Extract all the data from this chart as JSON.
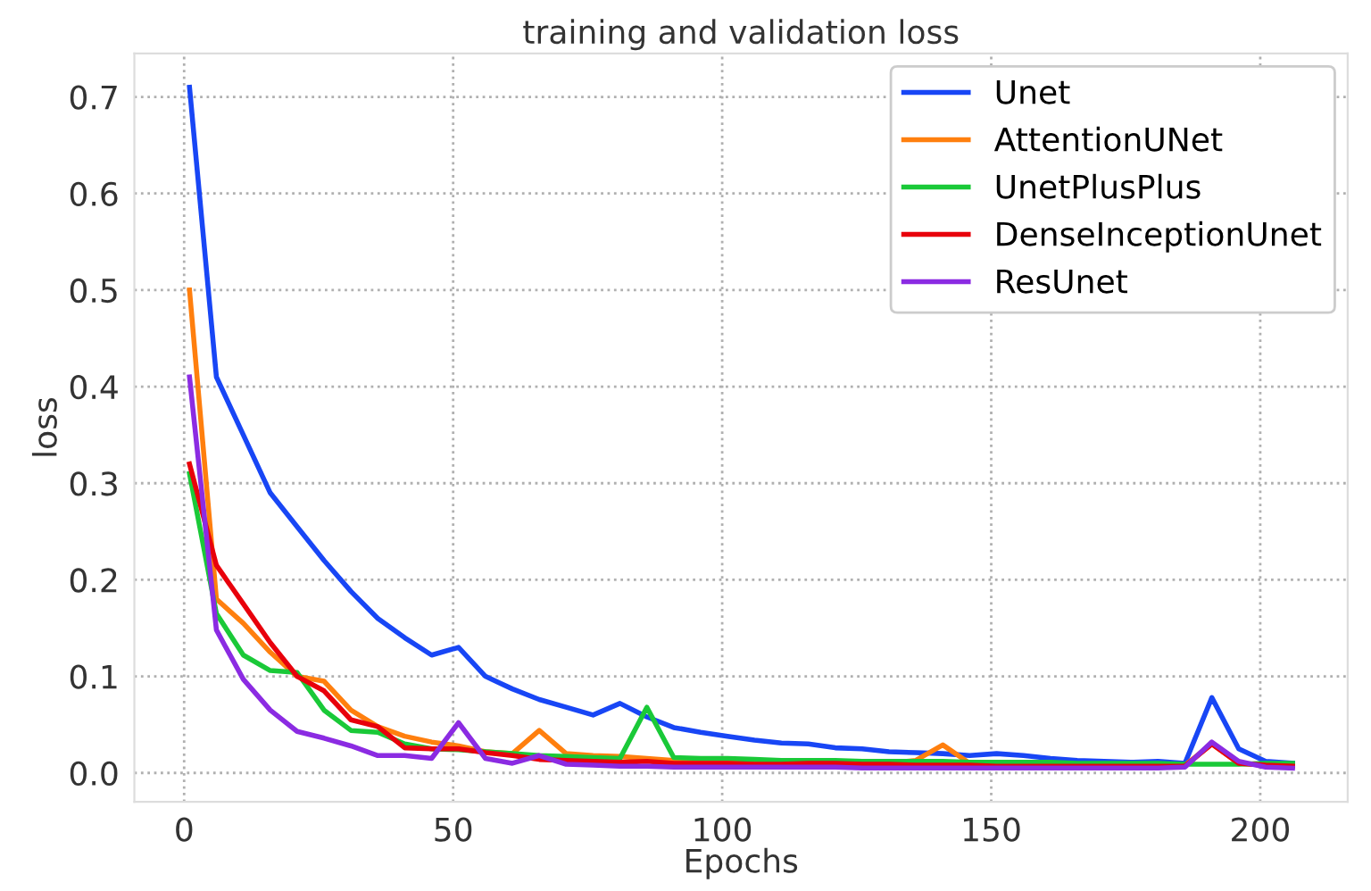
{
  "chart_data": {
    "type": "line",
    "title": "training and validation loss",
    "xlabel": "Epochs",
    "ylabel": "loss",
    "x": [
      1,
      6,
      11,
      16,
      21,
      26,
      31,
      36,
      41,
      46,
      51,
      56,
      61,
      66,
      71,
      76,
      81,
      86,
      91,
      96,
      101,
      106,
      111,
      116,
      121,
      126,
      131,
      136,
      141,
      146,
      151,
      156,
      161,
      166,
      171,
      176,
      181,
      186,
      191,
      196,
      201,
      206
    ],
    "series": [
      {
        "name": "Unet",
        "color": "#1846f5",
        "values": [
          0.71,
          0.41,
          0.35,
          0.29,
          0.255,
          0.22,
          0.188,
          0.16,
          0.14,
          0.122,
          0.13,
          0.1,
          0.087,
          0.076,
          0.068,
          0.06,
          0.072,
          0.058,
          0.047,
          0.042,
          0.038,
          0.034,
          0.031,
          0.03,
          0.026,
          0.025,
          0.022,
          0.021,
          0.02,
          0.018,
          0.02,
          0.018,
          0.015,
          0.013,
          0.012,
          0.011,
          0.012,
          0.01,
          0.078,
          0.025,
          0.012,
          0.01
        ]
      },
      {
        "name": "AttentionUNet",
        "color": "#ff7f0e",
        "values": [
          0.5,
          0.18,
          0.155,
          0.125,
          0.1,
          0.095,
          0.065,
          0.048,
          0.038,
          0.032,
          0.028,
          0.022,
          0.02,
          0.044,
          0.02,
          0.018,
          0.017,
          0.015,
          0.013,
          0.012,
          0.012,
          0.011,
          0.011,
          0.012,
          0.011,
          0.01,
          0.01,
          0.013,
          0.029,
          0.01,
          0.009,
          0.009,
          0.009,
          0.008,
          0.008,
          0.008,
          0.008,
          0.008,
          0.03,
          0.01,
          0.008,
          0.007
        ]
      },
      {
        "name": "UnetPlusPlus",
        "color": "#1ac938",
        "values": [
          0.31,
          0.165,
          0.122,
          0.106,
          0.104,
          0.065,
          0.044,
          0.042,
          0.03,
          0.025,
          0.024,
          0.022,
          0.02,
          0.018,
          0.017,
          0.016,
          0.015,
          0.068,
          0.016,
          0.015,
          0.015,
          0.014,
          0.013,
          0.013,
          0.013,
          0.012,
          0.012,
          0.012,
          0.012,
          0.011,
          0.011,
          0.011,
          0.011,
          0.01,
          0.01,
          0.01,
          0.01,
          0.009,
          0.009,
          0.009,
          0.01,
          0.01
        ]
      },
      {
        "name": "DenseInceptionUnet",
        "color": "#e8000b",
        "values": [
          0.32,
          0.215,
          0.175,
          0.135,
          0.1,
          0.085,
          0.055,
          0.048,
          0.026,
          0.025,
          0.025,
          0.021,
          0.018,
          0.014,
          0.013,
          0.012,
          0.011,
          0.012,
          0.01,
          0.01,
          0.01,
          0.009,
          0.009,
          0.01,
          0.01,
          0.009,
          0.009,
          0.008,
          0.008,
          0.008,
          0.007,
          0.007,
          0.007,
          0.007,
          0.007,
          0.007,
          0.007,
          0.007,
          0.03,
          0.01,
          0.008,
          0.007
        ]
      },
      {
        "name": "ResUnet",
        "color": "#8b2be2",
        "values": [
          0.41,
          0.148,
          0.097,
          0.065,
          0.043,
          0.036,
          0.028,
          0.018,
          0.018,
          0.015,
          0.052,
          0.015,
          0.01,
          0.018,
          0.009,
          0.008,
          0.007,
          0.007,
          0.006,
          0.006,
          0.006,
          0.006,
          0.006,
          0.006,
          0.006,
          0.005,
          0.005,
          0.005,
          0.005,
          0.005,
          0.005,
          0.005,
          0.005,
          0.005,
          0.005,
          0.005,
          0.005,
          0.006,
          0.032,
          0.012,
          0.006,
          0.005
        ]
      }
    ],
    "xlim": [
      -9.25,
      216.25
    ],
    "xticks": [
      0,
      50,
      100,
      150,
      200
    ],
    "ylim": [
      -0.03,
      0.745
    ],
    "yticks": [
      {
        "value": 0,
        "label": "0.0"
      },
      0.1,
      0.2,
      0.3,
      0.4,
      0.5,
      0.6,
      0.7
    ],
    "grid": true,
    "legend": "top right",
    "line_style": "solid"
  }
}
